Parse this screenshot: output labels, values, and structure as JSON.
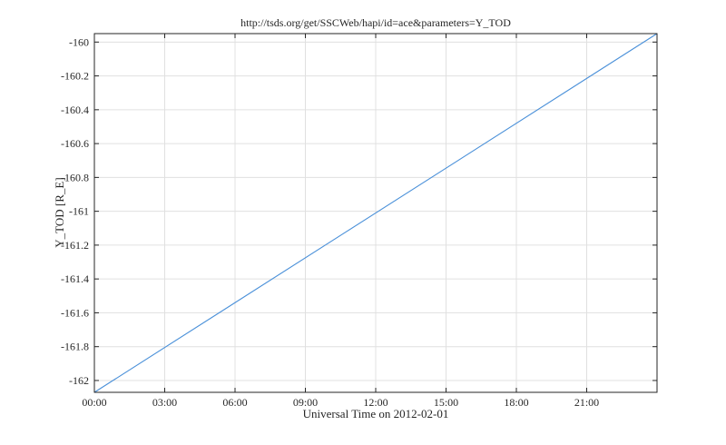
{
  "chart_data": {
    "type": "line",
    "title": "http://tsds.org/get/SSCWeb/hapi/id=ace&parameters=Y_TOD",
    "xlabel": "Universal Time on 2012-02-01",
    "ylabel": "Y_TOD [R_E]",
    "x_ticks": [
      "00:00",
      "03:00",
      "06:00",
      "09:00",
      "12:00",
      "15:00",
      "18:00",
      "21:00"
    ],
    "x_tick_hours": [
      0,
      3,
      6,
      9,
      12,
      15,
      18,
      21
    ],
    "xlim_hours": [
      0,
      24
    ],
    "y_ticks": [
      "-160",
      "-160.2",
      "-160.4",
      "-160.6",
      "-160.8",
      "-161",
      "-161.2",
      "-161.4",
      "-161.6",
      "-161.8",
      "-162"
    ],
    "y_tick_values": [
      -160,
      -160.2,
      -160.4,
      -160.6,
      -160.8,
      -161,
      -161.2,
      -161.4,
      -161.6,
      -161.8,
      -162
    ],
    "ylim": [
      -162.07,
      -159.95
    ],
    "grid": true,
    "series": [
      {
        "color": "#4a90d9",
        "x_hours": [
          0,
          24
        ],
        "values": [
          -162.07,
          -159.95
        ]
      }
    ]
  }
}
